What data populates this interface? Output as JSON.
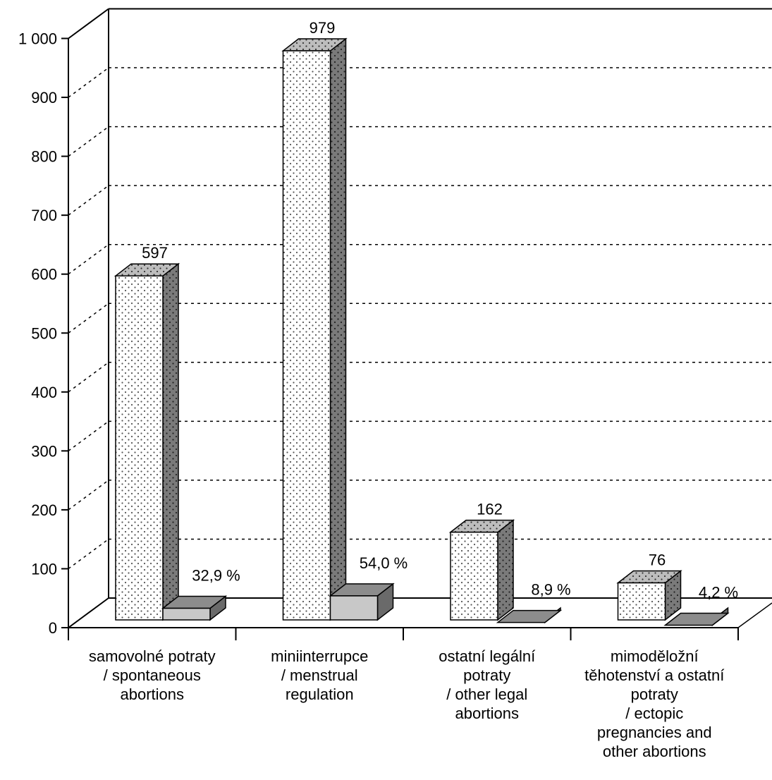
{
  "chart_data": {
    "type": "bar",
    "three_d": true,
    "categories": [
      [
        "samovolné potraty",
        "/ spontaneous",
        "abortions"
      ],
      [
        "miniinterrupce",
        "/ menstrual",
        "regulation"
      ],
      [
        "ostatní legální",
        "potraty",
        "/ other legal",
        "abortions"
      ],
      [
        "mimoděložní",
        "těhotenství a ostatní",
        "potraty",
        "/ ectopic",
        "pregnancies and",
        "other abortions"
      ]
    ],
    "series": [
      {
        "values": [
          597,
          979,
          162,
          76
        ],
        "value_labels": [
          "597",
          "979",
          "162",
          "76"
        ],
        "fill": "dotted-white"
      },
      {
        "values": [
          32.9,
          54.0,
          8.9,
          4.2
        ],
        "value_labels": [
          "32,9 %",
          "54,0 %",
          "8,9 %",
          "4,2 %"
        ],
        "fill": "light-gray"
      }
    ],
    "y_ticks": [
      0,
      100,
      200,
      300,
      400,
      500,
      600,
      700,
      800,
      900,
      1000
    ],
    "y_tick_labels": [
      "0",
      "100",
      "200",
      "300",
      "400",
      "500",
      "600",
      "700",
      "800",
      "900",
      "1 000"
    ],
    "ylim": [
      0,
      1000
    ],
    "grid": "dotted-horizontal",
    "title": "",
    "xlabel": "",
    "ylabel": ""
  },
  "colors": {
    "dot_face": "#ffffff",
    "dot_color": "#555555",
    "top_dotted": "#bdbdbd",
    "side_dark": "#7a7a7a",
    "pct_front": "#c8c8c8",
    "pct_top": "#8c8c8c",
    "pct_side": "#6a6a6a",
    "ink": "#000000"
  }
}
